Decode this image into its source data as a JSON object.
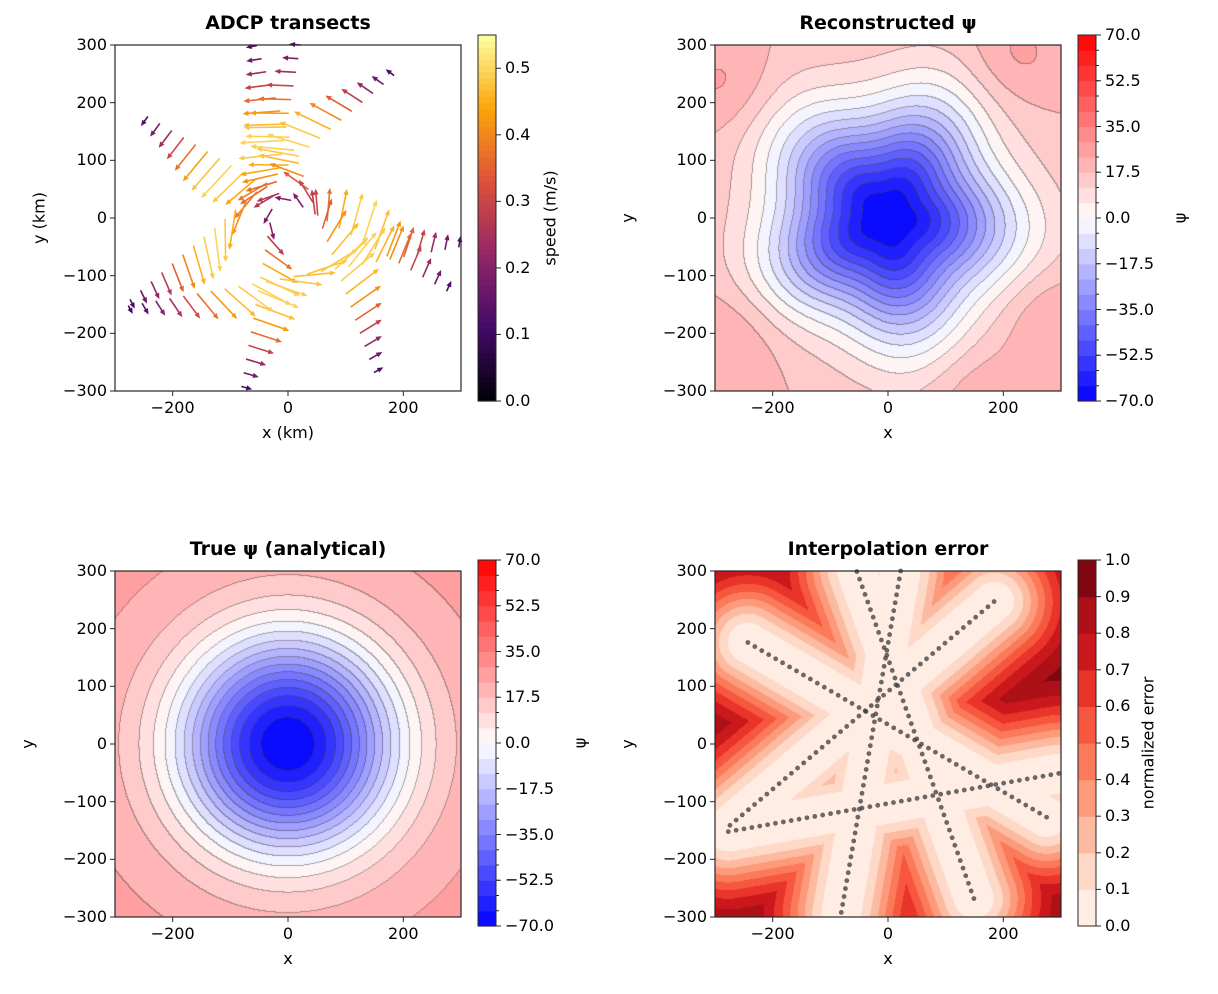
{
  "chart_data": [
    {
      "type": "quiver",
      "title": "ADCP transects",
      "xlabel": "x (km)",
      "ylabel": "y (km)",
      "xlim": [
        -300,
        300
      ],
      "ylim": [
        -300,
        300
      ],
      "xticks": [
        -200,
        0,
        200
      ],
      "yticks": [
        -300,
        -200,
        -100,
        0,
        100,
        200,
        300
      ],
      "colormap": "inferno",
      "colorbar": {
        "label": "speed (m/s)",
        "range": [
          0,
          0.55
        ],
        "ticks": [
          "0.0",
          "0.1",
          "0.2",
          "0.3",
          "0.4",
          "0.5"
        ]
      },
      "transects": [
        {
          "start": [
            -243,
            176
          ],
          "end": [
            275,
            -127
          ]
        },
        {
          "start": [
            184,
            247
          ],
          "end": [
            -274,
            -141
          ]
        },
        {
          "start": [
            -54,
            299
          ],
          "end": [
            149,
            -268
          ]
        },
        {
          "start": [
            22,
            300
          ],
          "end": [
            -81,
            -292
          ]
        },
        {
          "start": [
            -277,
            -152
          ],
          "end": [
            296,
            -51
          ]
        }
      ],
      "max_speed": 0.5
    },
    {
      "type": "contourf",
      "title": "Reconstructed ψ",
      "xlabel": "x",
      "ylabel": "y",
      "xlim": [
        -300,
        300
      ],
      "ylim": [
        -300,
        300
      ],
      "xticks": [
        -200,
        0,
        200
      ],
      "yticks": [
        -300,
        -200,
        -100,
        0,
        100,
        200,
        300
      ],
      "colormap": "bwr",
      "levels": {
        "min": -70,
        "max": 70,
        "count": 24
      },
      "colorbar": {
        "label": "ψ",
        "ticks": [
          "70.0",
          "52.5",
          "35.0",
          "17.5",
          "0.0",
          "−17.5",
          "−35.0",
          "−52.5",
          "−70.0"
        ]
      },
      "center_value": -70
    },
    {
      "type": "contourf",
      "title": "True ψ (analytical)",
      "xlabel": "x",
      "ylabel": "y",
      "xlim": [
        -300,
        300
      ],
      "ylim": [
        -300,
        300
      ],
      "xticks": [
        -200,
        0,
        200
      ],
      "yticks": [
        -300,
        -200,
        -100,
        0,
        100,
        200,
        300
      ],
      "colormap": "bwr",
      "levels": {
        "min": -70,
        "max": 70,
        "count": 24
      },
      "colorbar": {
        "label": "ψ",
        "ticks": [
          "70.0",
          "52.5",
          "35.0",
          "17.5",
          "0.0",
          "−17.5",
          "−35.0",
          "−52.5",
          "−70.0"
        ]
      },
      "center_value": -70
    },
    {
      "type": "contourf",
      "title": "Interpolation error",
      "xlabel": "x",
      "ylabel": "y",
      "xlim": [
        -300,
        300
      ],
      "ylim": [
        -300,
        300
      ],
      "xticks": [
        -200,
        0,
        200
      ],
      "yticks": [
        -300,
        -200,
        -100,
        0,
        100,
        200,
        300
      ],
      "colormap": "Reds",
      "levels": {
        "min": 0,
        "max": 1,
        "count": 10
      },
      "colorbar": {
        "label": "normalized error",
        "ticks": [
          "1.0",
          "0.9",
          "0.8",
          "0.7",
          "0.6",
          "0.5",
          "0.4",
          "0.3",
          "0.2",
          "0.1",
          "0.0"
        ]
      },
      "overlay": "transect sample points"
    }
  ],
  "colors": {
    "axis": "#262626",
    "sample_points": "#3a3a3a"
  }
}
